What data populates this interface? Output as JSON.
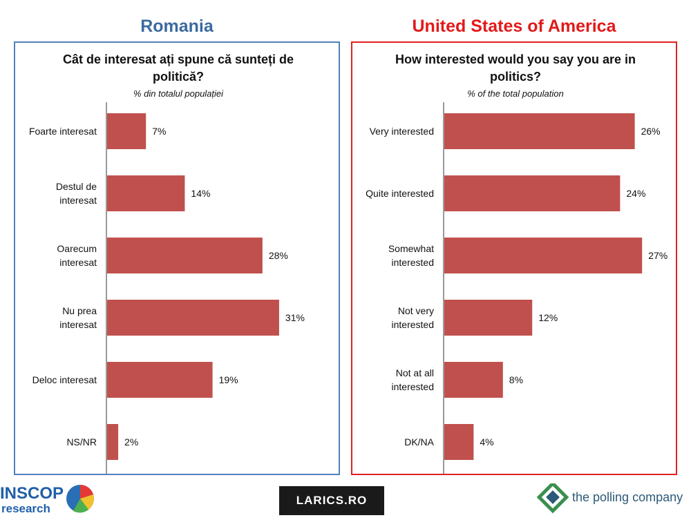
{
  "romania": {
    "country": "Romania",
    "question": "Cât de interesat ați spune că sunteți de politică?",
    "subtitle": "% din totalul populației"
  },
  "usa": {
    "country": "United States of America",
    "question": "How interested would you say you are in politics?",
    "subtitle": "% of the total population"
  },
  "chart_data": [
    {
      "type": "bar",
      "orientation": "horizontal",
      "title": "Cât de interesat ați spune că sunteți de politică?",
      "subtitle": "% din totalul populației",
      "categories": [
        [
          "Foarte interesat"
        ],
        [
          "Destul de",
          "interesat"
        ],
        [
          "Oarecum",
          "interesat"
        ],
        [
          "Nu prea",
          "interesat"
        ],
        [
          "Deloc interesat"
        ],
        [
          "NS/NR"
        ]
      ],
      "values": [
        7,
        14,
        28,
        31,
        19,
        2
      ],
      "value_labels": [
        "7%",
        "14%",
        "28%",
        "31%",
        "19%",
        "2%"
      ],
      "bar_color": "#c0504d",
      "grid": false
    },
    {
      "type": "bar",
      "orientation": "horizontal",
      "title": "How interested would you say you are in politics?",
      "subtitle": "% of the total population",
      "categories": [
        [
          "Very interested"
        ],
        [
          "Quite interested"
        ],
        [
          "Somewhat",
          "interested"
        ],
        [
          "Not very",
          "interested"
        ],
        [
          "Not at all",
          "interested"
        ],
        [
          "DK/NA"
        ]
      ],
      "values": [
        26,
        24,
        27,
        12,
        8,
        4
      ],
      "value_labels": [
        "26%",
        "24%",
        "27%",
        "12%",
        "8%",
        "4%"
      ],
      "bar_color": "#c0504d",
      "grid": false
    }
  ],
  "logos": {
    "inscop": "INSCOP",
    "inscop_sub": "research",
    "larics": "LARICS.RO",
    "polling": "the polling company"
  },
  "colors": {
    "romania_accent": "#3b6aa0",
    "romania_border": "#4f81bd",
    "usa_accent": "#e21a1a",
    "usa_border": "#e02020",
    "bar": "#c0504d"
  }
}
